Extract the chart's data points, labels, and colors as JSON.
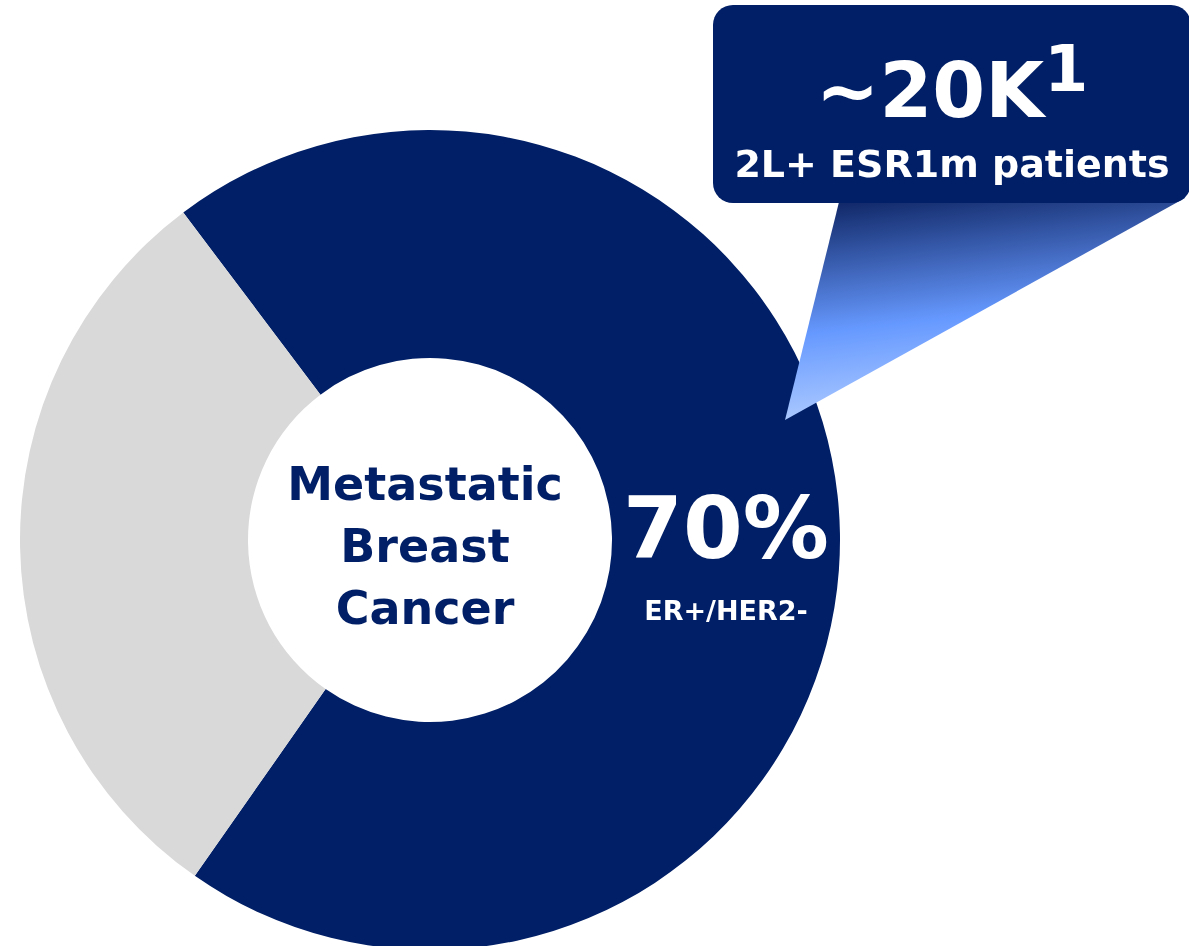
{
  "chart_data": {
    "type": "donut",
    "categories": [
      "ER+/HER2-",
      null
    ],
    "values": [
      70,
      30
    ],
    "value_labels": [
      "70%",
      null
    ],
    "colors": [
      "#001f66",
      "#d9d9d9"
    ],
    "annotations": [
      "Metastatic Breast Cancer",
      "~20K$^{1}$",
      "2L+ ESR1m patients"
    ]
  }
}
